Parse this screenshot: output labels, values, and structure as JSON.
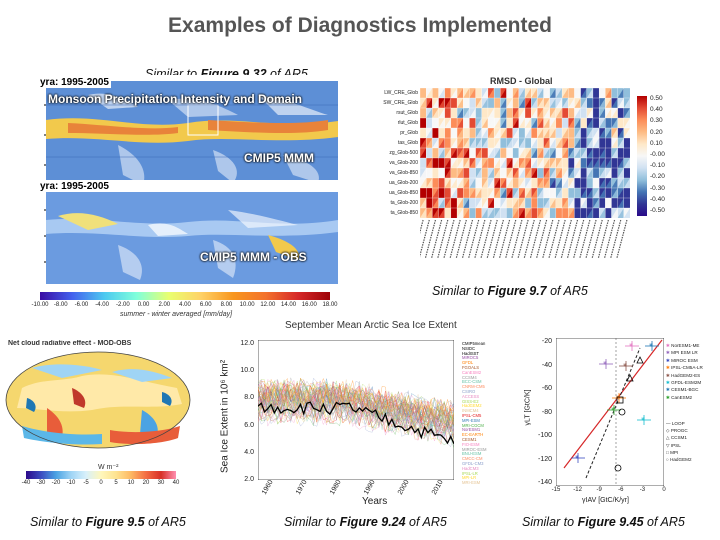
{
  "title": "Examples of Diagnostics Implemented",
  "monsoon": {
    "caption_prefix": "Similar to ",
    "caption_bold": "Figure 9.32",
    "caption_suffix": " of AR5",
    "top_years": "yra: 1995-2005",
    "bottom_years": "yra: 1995-2005",
    "overlay_title": "Monsoon Precipitation Intensity and Domain",
    "top_label": "CMIP5 MMM",
    "bottom_label": "CMIP5 MMM - OBS",
    "colorbar_ticks": [
      "-10.00",
      "-8.00",
      "-6.00",
      "-4.00",
      "-2.00",
      "0.00",
      "2.00",
      "4.00",
      "6.00",
      "8.00",
      "10.00",
      "12.00",
      "14.00",
      "16.00",
      "18.00"
    ],
    "colorbar_label": "summer - winter averaged [mm/day]"
  },
  "rmsd": {
    "caption_prefix": "Similar to ",
    "caption_bold": "Figure 9.7",
    "caption_suffix": " of AR5",
    "title": "RMSD - Global",
    "legend_ticks": [
      "0.50",
      "0.40",
      "0.30",
      "0.20",
      "0.10",
      "-0.00",
      "-0.10",
      "-0.20",
      "-0.30",
      "-0.40",
      "-0.50"
    ],
    "row_labels": [
      "LW_CRE_Glob",
      "SW_CRE_Glob",
      "rsut_Glob",
      "rlut_Glob",
      "pr_Glob",
      "tas_Glob",
      "zg_Glob-500",
      "va_Glob-200",
      "va_Glob-850",
      "ua_Glob-200",
      "ua_Glob-850",
      "ta_Glob-200",
      "ta_Glob-850"
    ]
  },
  "cloud": {
    "caption_prefix": "Similar to ",
    "caption_bold": "Figure 9.5",
    "caption_suffix": " of AR5",
    "title": "Net cloud radiative effect - MOD-OBS",
    "units": "W m⁻²",
    "colorbar_ticks": [
      "-40",
      "-30",
      "-20",
      "-10",
      "-5",
      "0",
      "5",
      "10",
      "20",
      "30",
      "40"
    ]
  },
  "seaice": {
    "caption_prefix": "Similar to ",
    "caption_bold": "Figure 9.24",
    "caption_suffix": " of AR5",
    "title": "September Mean Arctic Sea Ice Extent",
    "ylabel": "Sea Ice Extent in 10⁶ km²",
    "xlabel": "Years",
    "yticks": [
      "12.0",
      "10.0",
      "8.0",
      "6.0",
      "4.0",
      "2.0"
    ],
    "xticks": [
      "1960",
      "1970",
      "1980",
      "1990",
      "2000",
      "2010"
    ],
    "legend": [
      "CMIP5mean",
      "NSIDC",
      "HadISST",
      "MIROC5",
      "GFDL",
      "FGOALS",
      "CanESM2",
      "CCSM4",
      "BCC-CSM",
      "CNRM-CM5",
      "CSIRO",
      "ACCESS",
      "GISS-E2",
      "HadGEM2",
      "INMCM4",
      "IPSL-CM5",
      "MPI-ESM",
      "MRI-CGCM",
      "NorESM1",
      "EC-EARTH",
      "CESM1",
      "FIO-ESM",
      "MIROC-ESM",
      "BNU-ESM",
      "CMCC-CM",
      "GFDL-CM3",
      "HadCM3",
      "IPSL-LR",
      "MPI-LR",
      "MRI-ESM"
    ]
  },
  "scatter": {
    "caption_prefix": "Similar to ",
    "caption_bold": "Figure 9.45",
    "caption_suffix": " of AR5",
    "ylabel": "γLT [GtC/K]",
    "xlabel": "γIAV [GtC/K/yr]",
    "yticks": [
      "-20",
      "-40",
      "-60",
      "-80",
      "-100",
      "-120",
      "-140"
    ],
    "xticks": [
      "-15",
      "-12",
      "-9",
      "-6",
      "-3",
      "0"
    ],
    "legend": [
      "NorESM1-ME",
      "MPI ESM LR",
      "MIROC ESM",
      "IPSL-CM5A-LR",
      "HadGEM2-ES",
      "GFDL-ESM2M",
      "CESM1-BGC",
      "CanESM2"
    ],
    "legend2": [
      "LOOP",
      "PROGC",
      "CCSM1",
      "IPSL",
      "MPI",
      "HadGEM2"
    ]
  }
}
